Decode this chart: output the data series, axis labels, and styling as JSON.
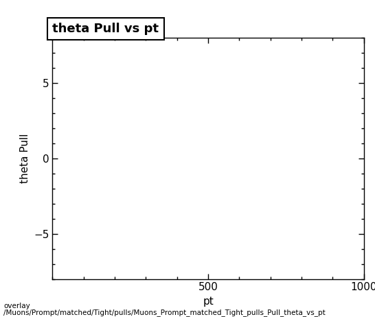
{
  "title": "theta Pull vs pt",
  "xlabel": "pt",
  "ylabel": "theta Pull",
  "xlim": [
    0,
    1000
  ],
  "ylim": [
    -8,
    8
  ],
  "xticks": [
    500,
    1000
  ],
  "yticks": [
    -5,
    0,
    5
  ],
  "background_color": "#ffffff",
  "plot_bg_color": "#ffffff",
  "footer_line1": "overlay",
  "footer_line2": "/Muons/Prompt/matched/Tight/pulls/Muons_Prompt_matched_Tight_pulls_Pull_theta_vs_pt",
  "title_fontsize": 13,
  "axis_label_fontsize": 11,
  "tick_fontsize": 11,
  "footer_fontsize": 7.5
}
